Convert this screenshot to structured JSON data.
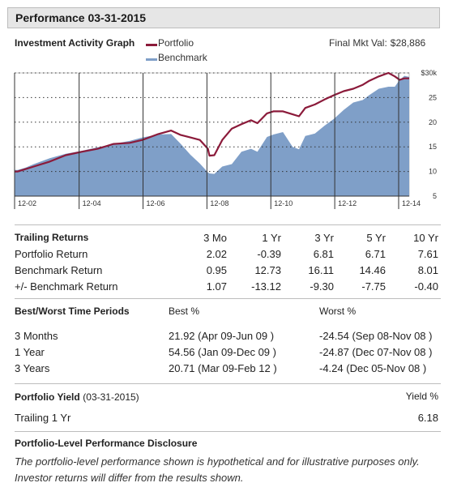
{
  "header": {
    "title": "Performance 03-31-2015"
  },
  "graph": {
    "label": "Investment Activity Graph",
    "legend": [
      {
        "name": "Portfolio",
        "color": "#8b1a3a"
      },
      {
        "name": "Benchmark",
        "color": "#7f9fc8"
      }
    ],
    "final_mkt_label": "Final Mkt Val:",
    "final_mkt_value": "$28,886"
  },
  "chart_data": {
    "type": "area",
    "x_tick_labels": [
      "12-02",
      "12-04",
      "12-06",
      "12-08",
      "12-10",
      "12-12",
      "12-14"
    ],
    "y_tick_labels": [
      "$30k",
      "25",
      "20",
      "15",
      "10",
      "5"
    ],
    "y_ticks": [
      30,
      25,
      20,
      15,
      10,
      5
    ],
    "ylim": [
      5,
      30
    ],
    "xlim": [
      2002.9,
      2015.25
    ],
    "grid": true,
    "series": [
      {
        "name": "Portfolio",
        "color": "#8b1a3a",
        "x": [
          2002.9,
          2003.0,
          2003.25,
          2003.5,
          2004.0,
          2004.5,
          2005.0,
          2005.5,
          2006.0,
          2006.5,
          2006.9,
          2007.4,
          2007.8,
          2008.1,
          2008.4,
          2008.7,
          2008.95,
          2009.0,
          2009.15,
          2009.4,
          2009.7,
          2010.0,
          2010.3,
          2010.5,
          2010.8,
          2011.0,
          2011.3,
          2011.6,
          2011.8,
          2012.0,
          2012.3,
          2012.6,
          2012.9,
          2013.2,
          2013.5,
          2013.8,
          2014.0,
          2014.3,
          2014.6,
          2014.8,
          2014.95,
          2015.1,
          2015.25
        ],
        "values": [
          10.0,
          10.0,
          10.5,
          11.0,
          12.0,
          13.3,
          14.0,
          14.6,
          15.6,
          15.8,
          16.4,
          17.6,
          18.3,
          17.4,
          16.9,
          16.4,
          14.6,
          13.2,
          13.3,
          16.4,
          18.7,
          19.6,
          20.4,
          19.8,
          21.8,
          22.2,
          22.2,
          21.6,
          21.2,
          22.9,
          23.6,
          24.6,
          25.5,
          26.3,
          26.8,
          27.6,
          28.4,
          29.3,
          30.0,
          29.3,
          28.6,
          28.9,
          28.9
        ]
      },
      {
        "name": "Benchmark",
        "color": "#7f9fc8",
        "x": [
          2002.9,
          2003.0,
          2003.25,
          2003.5,
          2004.0,
          2004.5,
          2005.0,
          2005.5,
          2006.0,
          2006.5,
          2006.9,
          2007.4,
          2007.8,
          2008.1,
          2008.4,
          2008.7,
          2008.95,
          2009.0,
          2009.15,
          2009.4,
          2009.7,
          2010.0,
          2010.3,
          2010.5,
          2010.8,
          2011.0,
          2011.3,
          2011.6,
          2011.8,
          2012.0,
          2012.3,
          2012.6,
          2012.9,
          2013.2,
          2013.5,
          2013.8,
          2014.0,
          2014.3,
          2014.6,
          2014.8,
          2014.95,
          2015.1,
          2015.25
        ],
        "values": [
          10.3,
          10.3,
          10.8,
          11.5,
          12.7,
          13.6,
          14.2,
          14.9,
          15.6,
          16.2,
          16.9,
          17.5,
          17.6,
          15.6,
          13.4,
          11.6,
          9.8,
          9.6,
          9.5,
          11.0,
          11.5,
          14.0,
          14.6,
          14.0,
          17.0,
          17.5,
          18.0,
          15.0,
          14.5,
          17.2,
          17.7,
          19.3,
          20.7,
          22.5,
          24.0,
          24.5,
          25.5,
          26.8,
          27.2,
          27.2,
          28.6,
          29.4,
          29.2
        ]
      }
    ]
  },
  "trailing_returns": {
    "title": "Trailing Returns",
    "columns": [
      "3 Mo",
      "1 Yr",
      "3 Yr",
      "5 Yr",
      "10 Yr"
    ],
    "rows": [
      {
        "label": "Portfolio Return",
        "values": [
          "2.02",
          "-0.39",
          "6.81",
          "6.71",
          "7.61"
        ]
      },
      {
        "label": "Benchmark Return",
        "values": [
          "0.95",
          "12.73",
          "16.11",
          "14.46",
          "8.01"
        ]
      },
      {
        "label": "+/- Benchmark Return",
        "values": [
          "1.07",
          "-13.12",
          "-9.30",
          "-7.75",
          "-0.40"
        ]
      }
    ]
  },
  "best_worst": {
    "title": "Best/Worst Time Periods",
    "best_header": "Best %",
    "worst_header": "Worst %",
    "rows": [
      {
        "label": "3 Months",
        "best": "21.92 (Apr 09-Jun 09 )",
        "worst": "-24.54 (Sep 08-Nov 08 )"
      },
      {
        "label": "1 Year",
        "best": "54.56 (Jan 09-Dec 09 )",
        "worst": "-24.87 (Dec 07-Nov 08 )"
      },
      {
        "label": "3 Years",
        "best": "20.71 (Mar 09-Feb 12 )",
        "worst": "-4.24 (Dec 05-Nov 08 )"
      }
    ]
  },
  "yield": {
    "title": "Portfolio Yield",
    "date": "(03-31-2015)",
    "header": "Yield %",
    "row_label": "Trailing 1 Yr",
    "row_value": "6.18"
  },
  "disclosure": {
    "title": "Portfolio-Level Performance Disclosure",
    "line1": "The portfolio-level performance shown is hypothetical and for illustrative purposes only.",
    "line2": "Investor returns will differ from the results shown."
  }
}
